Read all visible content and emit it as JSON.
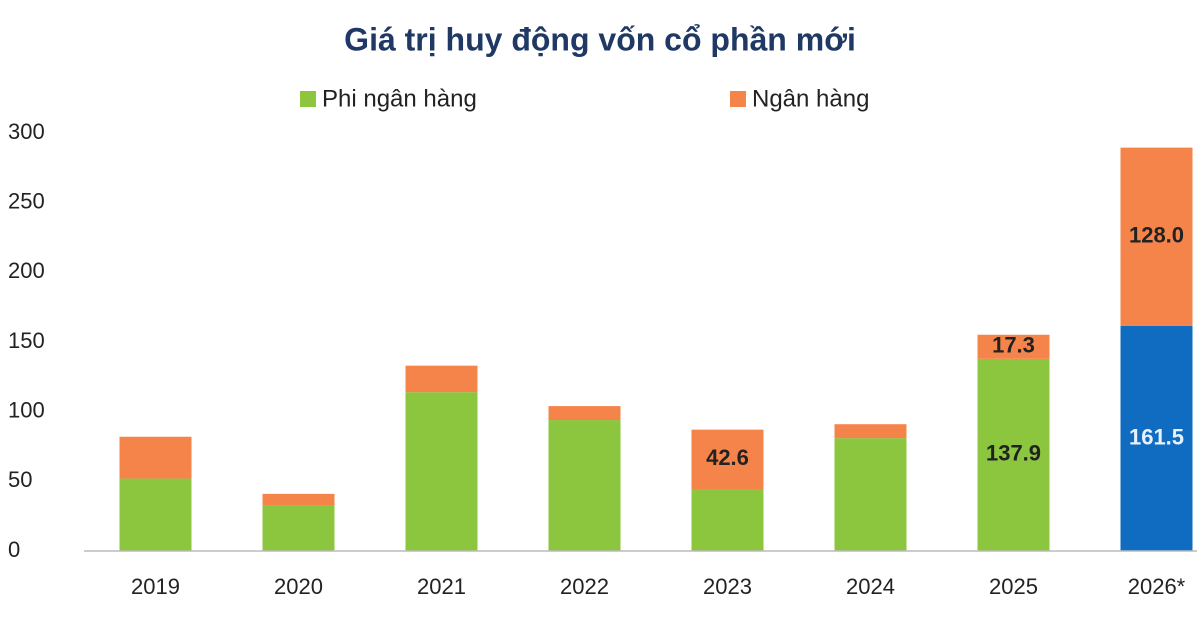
{
  "chart_data": {
    "type": "stacked-bar",
    "title": "Giá trị huy động vốn cổ phần mới",
    "categories": [
      "2019",
      "2020",
      "2021",
      "2022",
      "2023",
      "2024",
      "2025",
      "2026*"
    ],
    "series": [
      {
        "name": "Phi ngân hàng",
        "color": "#8cc63f",
        "bar_colors": [
          "#8cc63f",
          "#8cc63f",
          "#8cc63f",
          "#8cc63f",
          "#8cc63f",
          "#8cc63f",
          "#8cc63f",
          "#0f6cc0"
        ],
        "values": [
          52,
          33,
          114,
          94,
          44.5,
          81,
          137.9,
          161.5
        ],
        "value_labels": [
          null,
          null,
          null,
          null,
          null,
          null,
          "137.9",
          "161.5"
        ]
      },
      {
        "name": "Ngân hàng",
        "color": "#f5844a",
        "values": [
          30,
          8,
          19,
          10,
          42.6,
          10,
          17.3,
          128.0
        ],
        "value_labels": [
          null,
          null,
          null,
          null,
          "42.6",
          null,
          "17.3",
          "128.0"
        ]
      }
    ],
    "ylim": [
      0,
      300
    ],
    "yticks": [
      0,
      50,
      100,
      150,
      200,
      250,
      300
    ],
    "grid": false,
    "legend": "top"
  }
}
